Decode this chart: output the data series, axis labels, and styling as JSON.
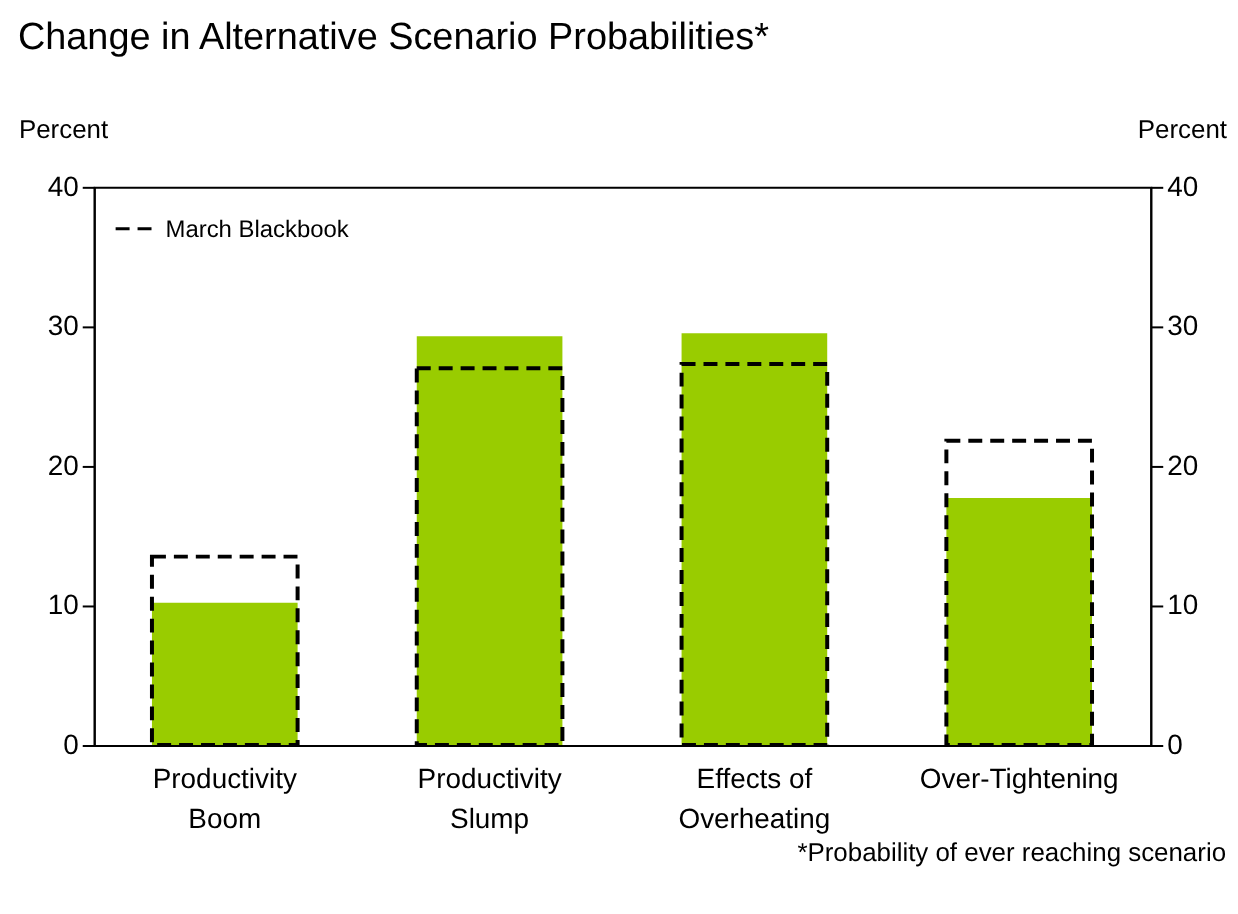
{
  "chart_data": {
    "type": "bar",
    "title": "Change in Alternative Scenario Probabilities*",
    "categories": [
      "Productivity\nBoom",
      "Productivity\nSlump",
      "Effects of\nOverheating",
      "Over-Tightening"
    ],
    "series": [
      {
        "color": "#99cc00",
        "values": [
          10.2,
          29.3,
          29.5,
          17.7
        ]
      },
      {
        "name": "March Blackbook",
        "color": "#000000",
        "line_style": "dashed",
        "values": [
          13.5,
          27.0,
          27.3,
          21.8
        ]
      }
    ],
    "ylabel": "Percent",
    "y2label": "Percent",
    "ylim": [
      0,
      40
    ],
    "yticks": [
      0,
      10,
      20,
      30,
      40
    ],
    "y2lim": [
      0,
      40
    ],
    "y2ticks": [
      0,
      10,
      20,
      30,
      40
    ],
    "grid": false,
    "legend": "top left",
    "annotations": [
      "*Probability of ever reaching scenario"
    ]
  }
}
